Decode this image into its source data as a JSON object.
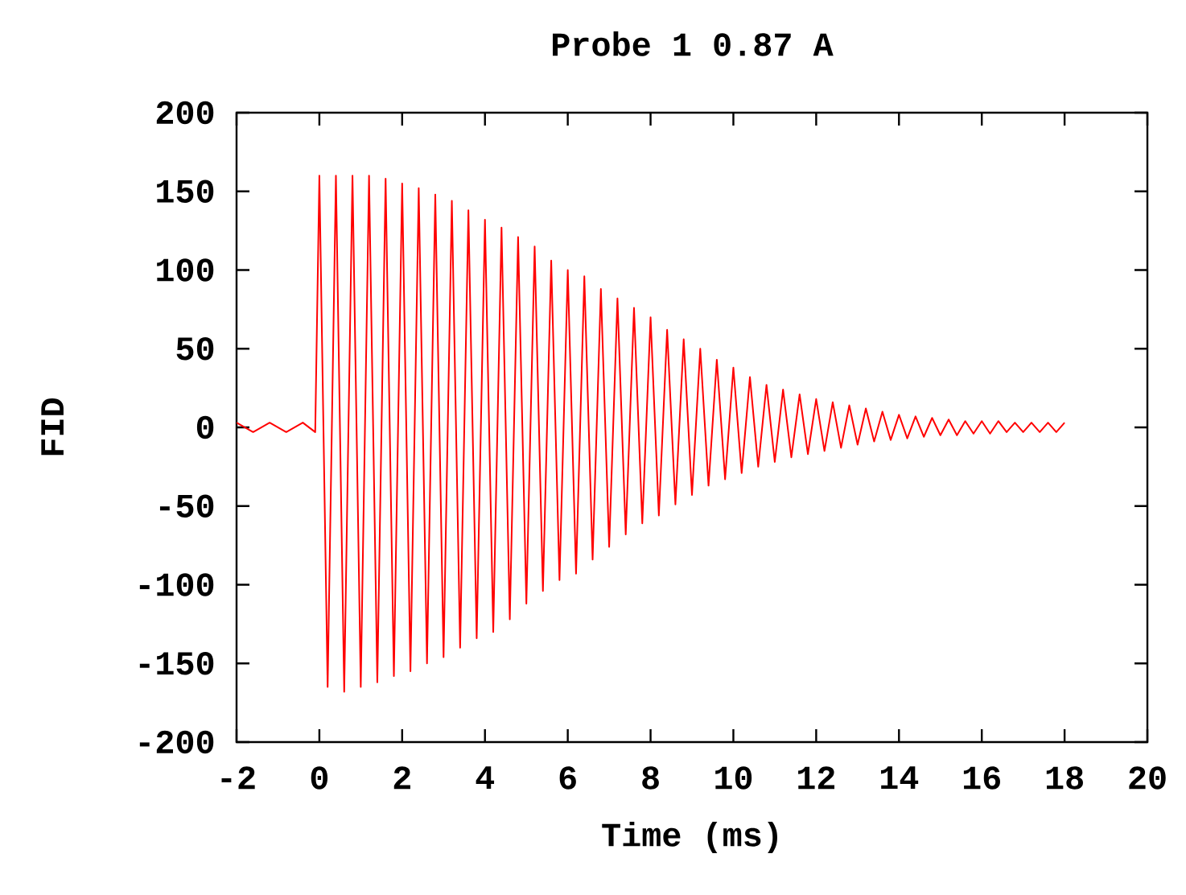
{
  "chart_data": {
    "type": "line",
    "title": "Probe 1 0.87 A",
    "xlabel": "Time (ms)",
    "ylabel": "FID",
    "xlim": [
      -2,
      20
    ],
    "xticks": [
      -2,
      0,
      2,
      4,
      6,
      8,
      10,
      12,
      14,
      16,
      18,
      20
    ],
    "ylim": [
      -200,
      200
    ],
    "yticks": [
      -200,
      -150,
      -100,
      -50,
      0,
      50,
      100,
      150,
      200
    ],
    "grid": false,
    "marker": "none",
    "line_style": "solid",
    "series": [
      {
        "color": "#ff0000",
        "x": [
          -2,
          -1.6,
          -1.2,
          -0.8,
          -0.4,
          -0.1,
          0,
          0.2,
          0.4,
          0.6,
          0.8,
          1.0,
          1.2,
          1.4,
          1.6,
          1.8,
          2.0,
          2.2,
          2.4,
          2.6,
          2.8,
          3.0,
          3.2,
          3.4,
          3.6,
          3.8,
          4.0,
          4.2,
          4.4,
          4.6,
          4.8,
          5.0,
          5.2,
          5.4,
          5.6,
          5.8,
          6.0,
          6.2,
          6.4,
          6.6,
          6.8,
          7.0,
          7.2,
          7.4,
          7.6,
          7.8,
          8.0,
          8.2,
          8.4,
          8.6,
          8.8,
          9.0,
          9.2,
          9.4,
          9.6,
          9.8,
          10.0,
          10.2,
          10.4,
          10.6,
          10.8,
          11.0,
          11.2,
          11.4,
          11.6,
          11.8,
          12.0,
          12.2,
          12.4,
          12.6,
          12.8,
          13.0,
          13.2,
          13.4,
          13.6,
          13.8,
          14.0,
          14.2,
          14.4,
          14.6,
          14.8,
          15.0,
          15.2,
          15.4,
          15.6,
          15.8,
          16.0,
          16.2,
          16.4,
          16.6,
          16.8,
          17.0,
          17.2,
          17.4,
          17.6,
          17.8,
          18.0
        ],
        "values": [
          3,
          -3,
          3,
          -3,
          3,
          -3,
          160,
          -165,
          160,
          -168,
          160,
          -165,
          160,
          -162,
          158,
          -158,
          155,
          -155,
          152,
          -150,
          148,
          -146,
          144,
          -140,
          138,
          -134,
          132,
          -130,
          127,
          -122,
          121,
          -112,
          115,
          -104,
          106,
          -97,
          100,
          -93,
          96,
          -84,
          88,
          -76,
          82,
          -68,
          76,
          -61,
          70,
          -56,
          62,
          -49,
          56,
          -43,
          50,
          -37,
          43,
          -33,
          38,
          -29,
          32,
          -25,
          27,
          -22,
          24,
          -19,
          21,
          -17,
          18,
          -15,
          16,
          -13,
          14,
          -11,
          12,
          -9,
          10,
          -8,
          8,
          -7,
          7,
          -6,
          6,
          -5,
          5,
          -5,
          4,
          -4,
          4,
          -4,
          4,
          -3,
          3,
          -3,
          3,
          -3,
          3,
          -3,
          3
        ]
      }
    ]
  }
}
